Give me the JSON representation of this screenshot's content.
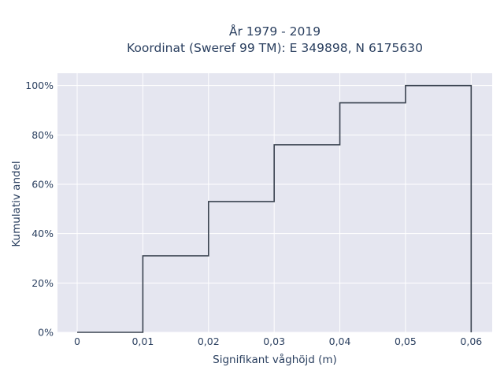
{
  "chart_data": {
    "type": "line",
    "line_shape": "step",
    "title": "År 1979 - 2019",
    "subtitle": "Koordinat (Sweref 99 TM): E 349898, N 6175630",
    "xlabel": "Signifikant våghöjd (m)",
    "ylabel": "Kumulativ andel",
    "xlim": [
      -0.003,
      0.0632
    ],
    "ylim": [
      0,
      1.05
    ],
    "x_ticks": [
      0,
      0.01,
      0.02,
      0.03,
      0.04,
      0.05,
      0.06
    ],
    "x_tick_labels": [
      "0",
      "0,01",
      "0,02",
      "0,03",
      "0,04",
      "0,05",
      "0,06"
    ],
    "y_ticks": [
      0,
      0.2,
      0.4,
      0.6,
      0.8,
      1.0
    ],
    "y_tick_labels": [
      "0%",
      "20%",
      "40%",
      "60%",
      "80%",
      "100%"
    ],
    "grid": true,
    "colors": {
      "plot_bg": "#e5e6f0",
      "grid": "#ffffff",
      "line": "#3a4350",
      "text": "#2a3f5f"
    },
    "series": [
      {
        "x": [
          0,
          0.01,
          0.02,
          0.03,
          0.04,
          0.05,
          0.06
        ],
        "y": [
          0,
          0.31,
          0.53,
          0.76,
          0.93,
          1.0,
          0
        ]
      }
    ]
  }
}
